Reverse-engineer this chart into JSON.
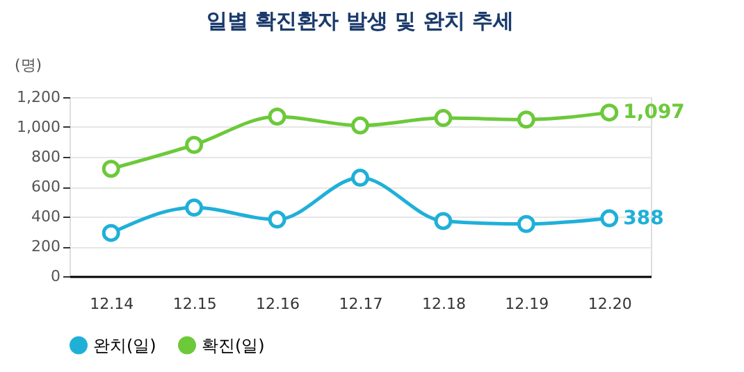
{
  "chart_data": {
    "type": "line",
    "title": "일별 확진환자 발생 및 완치 추세",
    "ylabel": "(명)",
    "categories": [
      "12.14",
      "12.15",
      "12.16",
      "12.17",
      "12.18",
      "12.19",
      "12.20"
    ],
    "series": [
      {
        "name": "완치(일)",
        "color": "#1fb0d8",
        "values": [
          290,
          460,
          380,
          660,
          370,
          350,
          388
        ],
        "value_labels": [
          null,
          null,
          null,
          null,
          null,
          null,
          "388"
        ]
      },
      {
        "name": "확진(일)",
        "color": "#6cc93a",
        "values": [
          720,
          880,
          1070,
          1010,
          1060,
          1050,
          1097
        ],
        "value_labels": [
          null,
          null,
          null,
          null,
          null,
          null,
          "1,097"
        ]
      }
    ],
    "ylim": [
      0,
      1200
    ],
    "yticks": [
      0,
      200,
      400,
      600,
      800,
      {
        "value": 1000,
        "label": "1,000"
      },
      {
        "value": 1200,
        "label": "1,200"
      }
    ],
    "grid": "y",
    "legend": "bottom",
    "marker": "circle",
    "line_style": "solid"
  }
}
